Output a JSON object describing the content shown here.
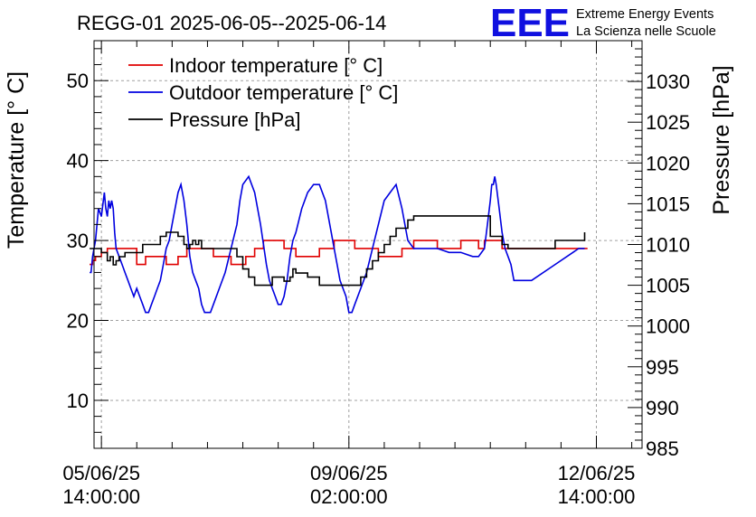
{
  "header": {
    "title": "REGG-01 2025-06-05--2025-06-14",
    "logo_text": "EEE",
    "logo_line1": "Extreme Energy Events",
    "logo_line2": "La Scienza nelle Scuole"
  },
  "colors": {
    "indoor": "#e00000",
    "outdoor": "#0000e0",
    "pressure": "#000000",
    "logo": "#1010e0",
    "grid": "#a0a0a0"
  },
  "chart_data": {
    "type": "line",
    "title": "REGG-01 2025-06-05--2025-06-14",
    "xlabel": "",
    "ylabel": "Temperature [° C]",
    "y2label": "Pressure [hPa]",
    "x_unit": "hours since 05/06/25 14:00:00",
    "xlim": [
      -2.5,
      183.5
    ],
    "ylim": [
      4,
      55
    ],
    "y2lim": [
      985,
      1035
    ],
    "grid": true,
    "legend_position": "top-left",
    "x_ticks": [
      {
        "value": 0,
        "line1": "05/06/25",
        "line2": "14:00:00"
      },
      {
        "value": 84,
        "line1": "09/06/25",
        "line2": "02:00:00"
      },
      {
        "value": 168,
        "line1": "12/06/25",
        "line2": "14:00:00"
      }
    ],
    "y_ticks": [
      {
        "value": 10,
        "label": "10"
      },
      {
        "value": 20,
        "label": "20"
      },
      {
        "value": 30,
        "label": "30"
      },
      {
        "value": 40,
        "label": "40"
      },
      {
        "value": 50,
        "label": "50"
      }
    ],
    "y2_ticks": [
      {
        "value": 985,
        "label": "985"
      },
      {
        "value": 990,
        "label": "990"
      },
      {
        "value": 995,
        "label": "995"
      },
      {
        "value": 1000,
        "label": "1000"
      },
      {
        "value": 1005,
        "label": "1005"
      },
      {
        "value": 1010,
        "label": "1010"
      },
      {
        "value": 1015,
        "label": "1015"
      },
      {
        "value": 1020,
        "label": "1020"
      },
      {
        "value": 1025,
        "label": "1025"
      },
      {
        "value": 1030,
        "label": "1030"
      }
    ],
    "series": [
      {
        "name": "Indoor temperature [° C]",
        "axis": "left",
        "color": "#e00000",
        "step": true,
        "x": [
          -4,
          -3,
          -2,
          0,
          2,
          6,
          9,
          12,
          15,
          19,
          22,
          26,
          29,
          34,
          38,
          40,
          44,
          49,
          52,
          55,
          58,
          62,
          66,
          70,
          74,
          79,
          82,
          86,
          90,
          94,
          98,
          102,
          106,
          110,
          114,
          118,
          120,
          122,
          124,
          128,
          130,
          133,
          136,
          146,
          162,
          165
        ],
        "y": [
          27,
          27.5,
          28,
          28.5,
          29,
          29,
          29,
          27,
          28,
          28,
          27,
          28,
          29,
          29,
          28,
          28,
          27,
          28,
          29,
          30,
          30,
          29,
          28,
          28,
          29,
          30,
          30,
          29,
          29,
          28,
          28,
          29,
          30,
          30,
          29,
          29,
          29,
          30,
          30,
          29,
          30,
          30,
          29,
          29,
          29,
          29
        ]
      },
      {
        "name": "Outdoor temperature [° C]",
        "axis": "left",
        "color": "#0000e0",
        "step": false,
        "x": [
          -4,
          -3.5,
          -3,
          -2.5,
          -2,
          -1,
          0,
          1,
          1.5,
          2,
          2.5,
          3,
          3.5,
          4,
          4.5,
          5,
          6,
          7,
          8,
          9,
          10,
          11,
          12,
          13,
          14,
          15,
          16,
          17,
          18,
          19,
          20,
          21,
          22,
          23,
          24,
          25,
          26,
          27,
          28,
          29,
          30,
          31,
          32,
          33,
          34,
          35,
          36,
          37,
          38,
          40,
          42,
          44,
          46,
          47,
          48,
          50,
          52,
          54,
          56,
          57,
          58,
          59,
          60,
          61,
          62,
          63,
          64,
          65,
          66,
          68,
          70,
          72,
          74,
          76,
          78,
          79,
          80,
          81,
          82,
          83,
          84,
          85,
          86,
          88,
          90,
          92,
          94,
          96,
          98,
          100,
          102,
          104,
          106,
          107,
          108,
          109,
          110,
          111,
          112,
          113,
          114,
          118,
          122,
          126,
          128,
          130,
          131,
          132,
          132.5,
          133,
          133.5,
          134,
          135,
          136,
          137,
          138,
          139,
          140,
          146,
          154,
          162,
          164
        ],
        "y": [
          26,
          26,
          28,
          29,
          30,
          34,
          33,
          36,
          34,
          33,
          35,
          34,
          35,
          34,
          31,
          29,
          28,
          27,
          26,
          25,
          24,
          23,
          24,
          23,
          22,
          21,
          21,
          22,
          23,
          24,
          25,
          27,
          29,
          30,
          32,
          34,
          36,
          37,
          35,
          32,
          28,
          26,
          25,
          24,
          22,
          21,
          21,
          21,
          22,
          24,
          26,
          29,
          32,
          35,
          37,
          38,
          36,
          32,
          27,
          25,
          24,
          23,
          22,
          22,
          23,
          25,
          28,
          30,
          31,
          34,
          36,
          37,
          37,
          35,
          31,
          29,
          27,
          25,
          24,
          23,
          21,
          21,
          22,
          24,
          26,
          29,
          32,
          35,
          36,
          37,
          34,
          30,
          29,
          29,
          29,
          29,
          29,
          29,
          29,
          29,
          29,
          28.5,
          28.5,
          28,
          28,
          29,
          32,
          35,
          37,
          37,
          38,
          37,
          34,
          31,
          29,
          28,
          27,
          25,
          25,
          27,
          29,
          29
        ]
      },
      {
        "name": "Pressure [hPa]",
        "axis": "right",
        "color": "#000000",
        "step": true,
        "x": [
          -4,
          0,
          2,
          3,
          4,
          5,
          6,
          8,
          12,
          14,
          16,
          20,
          22,
          26,
          28,
          29,
          30,
          31,
          32,
          33,
          34,
          36,
          38,
          44,
          46,
          48,
          50,
          52,
          56,
          58,
          60,
          62,
          64,
          65,
          66,
          70,
          74,
          76,
          80,
          82,
          84,
          86,
          88,
          90,
          92,
          94,
          96,
          98,
          100,
          102,
          104,
          106,
          108,
          110,
          114,
          118,
          120,
          122,
          124,
          126,
          128,
          130,
          132,
          136,
          138,
          140,
          146,
          154,
          164
        ],
        "y": [
          1009.5,
          1009,
          1008,
          1008.5,
          1007.5,
          1008,
          1008.5,
          1009,
          1009,
          1010,
          1010,
          1011,
          1011.5,
          1011,
          1010,
          1009.5,
          1010,
          1010.5,
          1010,
          1010.5,
          1009.5,
          1009.5,
          1009.5,
          1009.5,
          1008.5,
          1007,
          1006,
          1005,
          1005,
          1006,
          1006,
          1005.5,
          1006,
          1007,
          1006.5,
          1006,
          1005,
          1005,
          1005,
          1005,
          1005,
          1005,
          1006,
          1007,
          1008,
          1009,
          1010,
          1011,
          1012,
          1012,
          1013,
          1013.5,
          1013.5,
          1013.5,
          1013.5,
          1013.5,
          1013.5,
          1013.5,
          1013.5,
          1013.5,
          1013.5,
          1013.5,
          1011,
          1010,
          1009.5,
          1009.5,
          1009.5,
          1010.5,
          1011.5
        ]
      }
    ]
  }
}
